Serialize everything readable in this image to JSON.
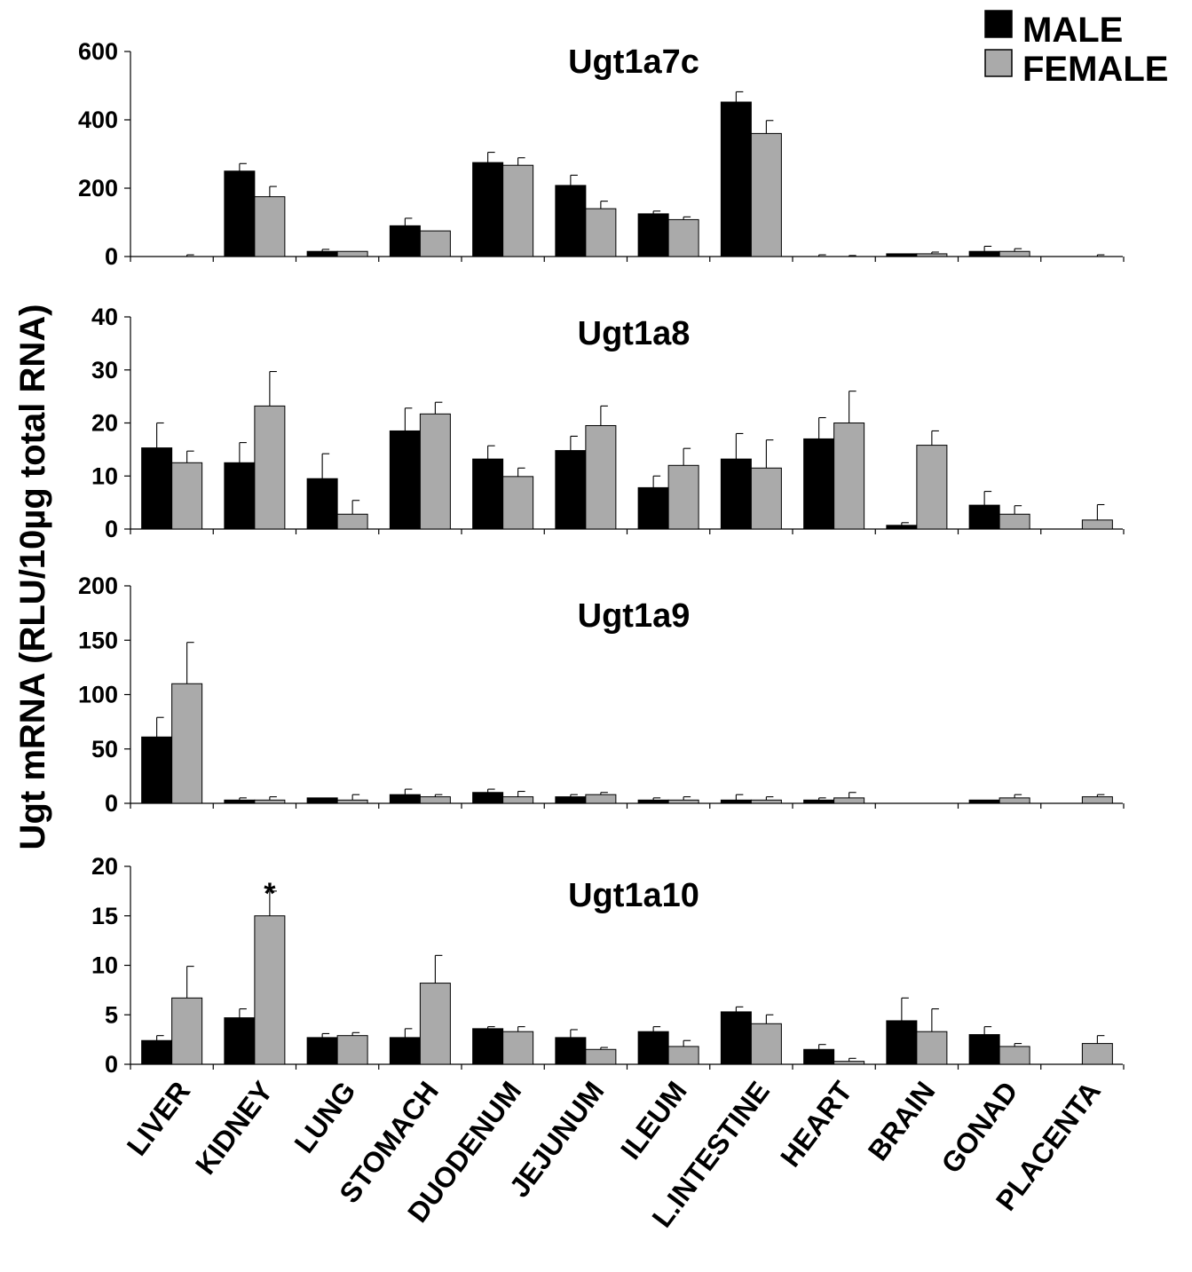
{
  "y_axis_label": "Ugt mRNA (RLU/10µg total RNA)",
  "legend": [
    {
      "label": "MALE",
      "color": "#000000"
    },
    {
      "label": "FEMALE",
      "color": "#aaaaaa"
    }
  ],
  "chart_data": [
    {
      "type": "bar",
      "title": "Ugt1a7c",
      "ylim": [
        0,
        600
      ],
      "yticks": [
        0,
        200,
        400,
        600
      ],
      "categories": [
        "LIVER",
        "KIDNEY",
        "LUNG",
        "STOMACH",
        "DUODENUM",
        "JEJUNUM",
        "ILEUM",
        "L.INTESTINE",
        "HEART",
        "BRAIN",
        "GONAD",
        "PLACENTA"
      ],
      "series": [
        {
          "name": "MALE",
          "values": [
            0,
            250,
            15,
            90,
            275,
            208,
            125,
            452,
            0,
            8,
            15,
            0
          ],
          "errors": [
            0,
            22,
            6,
            22,
            30,
            30,
            8,
            30,
            5,
            0,
            15,
            0
          ]
        },
        {
          "name": "FEMALE",
          "values": [
            0,
            175,
            15,
            75,
            267,
            140,
            108,
            360,
            0,
            8,
            15,
            0
          ],
          "errors": [
            5,
            30,
            0,
            0,
            22,
            22,
            8,
            38,
            3,
            5,
            8,
            5
          ]
        }
      ],
      "annotations": []
    },
    {
      "type": "bar",
      "title": "Ugt1a8",
      "ylim": [
        0,
        40
      ],
      "yticks": [
        0,
        10,
        20,
        30,
        40
      ],
      "categories": [
        "LIVER",
        "KIDNEY",
        "LUNG",
        "STOMACH",
        "DUODENUM",
        "JEJUNUM",
        "ILEUM",
        "L.INTESTINE",
        "HEART",
        "BRAIN",
        "GONAD",
        "PLACENTA"
      ],
      "series": [
        {
          "name": "MALE",
          "values": [
            15.3,
            12.5,
            9.5,
            18.5,
            13.2,
            14.8,
            7.8,
            13.2,
            17,
            0.7,
            4.5,
            0
          ],
          "errors": [
            4.7,
            3.8,
            4.7,
            4.3,
            2.5,
            2.7,
            2.2,
            4.8,
            4,
            0.5,
            2.6,
            0
          ]
        },
        {
          "name": "FEMALE",
          "values": [
            12.5,
            23.2,
            2.8,
            21.7,
            9.9,
            19.5,
            12,
            11.5,
            20,
            15.8,
            2.8,
            1.7
          ],
          "errors": [
            2.2,
            6.5,
            2.6,
            2.2,
            1.6,
            3.7,
            3.2,
            5.3,
            6,
            2.7,
            1.6,
            2.9
          ]
        }
      ],
      "annotations": []
    },
    {
      "type": "bar",
      "title": "Ugt1a9",
      "ylim": [
        0,
        200
      ],
      "yticks": [
        0,
        50,
        100,
        150,
        200
      ],
      "categories": [
        "LIVER",
        "KIDNEY",
        "LUNG",
        "STOMACH",
        "DUODENUM",
        "JEJUNUM",
        "ILEUM",
        "L.INTESTINE",
        "HEART",
        "BRAIN",
        "GONAD",
        "PLACENTA"
      ],
      "series": [
        {
          "name": "MALE",
          "values": [
            61,
            3,
            5,
            8,
            10,
            6,
            3,
            3,
            3,
            0,
            3,
            0
          ],
          "errors": [
            18,
            2,
            0,
            5,
            3,
            2,
            2,
            5,
            2,
            0,
            0,
            0
          ]
        },
        {
          "name": "FEMALE",
          "values": [
            110,
            3,
            3,
            6,
            6,
            8,
            3,
            3,
            5,
            0,
            5,
            6
          ],
          "errors": [
            38,
            3,
            5,
            2,
            5,
            2,
            3,
            3,
            5,
            0,
            3,
            2
          ]
        }
      ],
      "annotations": []
    },
    {
      "type": "bar",
      "title": "Ugt1a10",
      "ylim": [
        0,
        20
      ],
      "yticks": [
        0,
        5,
        10,
        15,
        20
      ],
      "categories": [
        "LIVER",
        "KIDNEY",
        "LUNG",
        "STOMACH",
        "DUODENUM",
        "JEJUNUM",
        "ILEUM",
        "L.INTESTINE",
        "HEART",
        "BRAIN",
        "GONAD",
        "PLACENTA"
      ],
      "series": [
        {
          "name": "MALE",
          "values": [
            2.4,
            4.7,
            2.7,
            2.7,
            3.6,
            2.7,
            3.3,
            5.3,
            1.5,
            4.4,
            3,
            0
          ],
          "errors": [
            0.5,
            0.9,
            0.4,
            0.9,
            0.2,
            0.8,
            0.5,
            0.5,
            0.5,
            2.3,
            0.8,
            0
          ]
        },
        {
          "name": "FEMALE",
          "values": [
            6.7,
            15,
            2.9,
            8.2,
            3.3,
            1.5,
            1.8,
            4.1,
            0.3,
            3.3,
            1.8,
            2.1
          ],
          "errors": [
            3.2,
            2.5,
            0.3,
            2.8,
            0.5,
            0.2,
            0.6,
            0.9,
            0.3,
            2.3,
            0.3,
            0.8
          ]
        }
      ],
      "annotations": [
        {
          "text": "*",
          "category": "KIDNEY",
          "series": "FEMALE"
        }
      ]
    }
  ]
}
